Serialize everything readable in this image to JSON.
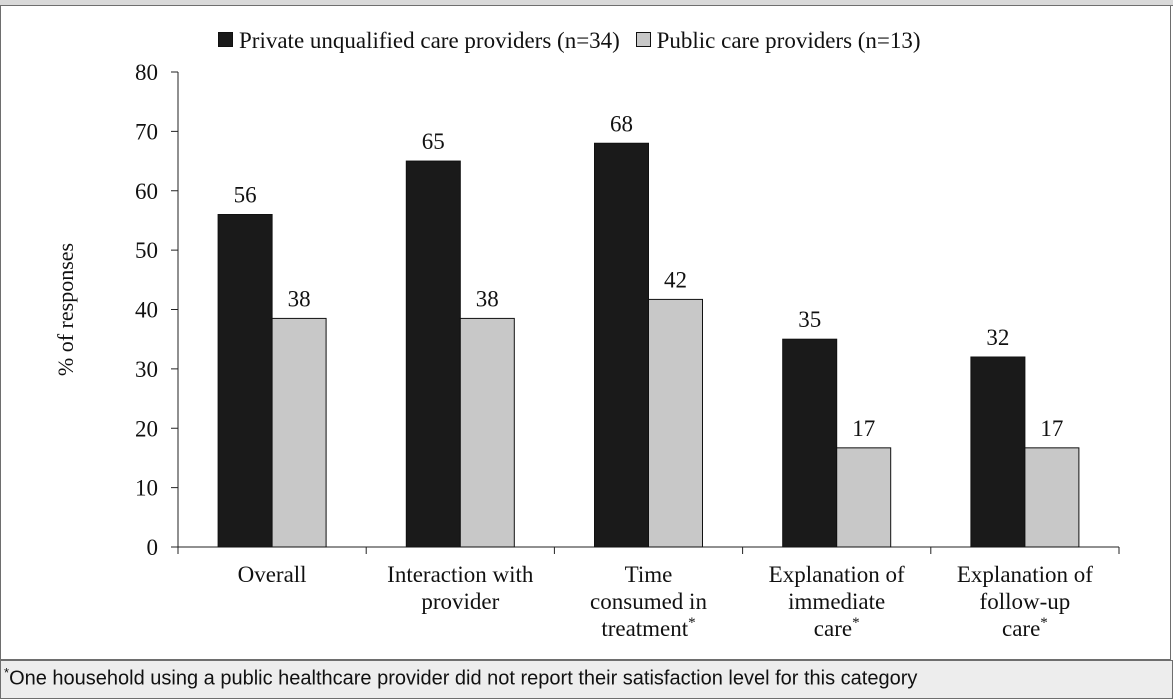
{
  "chart_data": {
    "type": "bar",
    "categories": [
      [
        "Overall"
      ],
      [
        "Interaction with",
        "provider"
      ],
      [
        "Time",
        "consumed in",
        "treatment*"
      ],
      [
        "Explanation of",
        "immediate",
        "care*"
      ],
      [
        "Explanation of",
        "follow-up",
        "care*"
      ]
    ],
    "series": [
      {
        "name": "Private unqualified care providers (n=34)",
        "values": [
          56,
          65,
          68,
          35,
          32
        ],
        "labels": [
          "56",
          "65",
          "68",
          "35",
          "32"
        ],
        "color": "#1a1a1a"
      },
      {
        "name": "Public care providers (n=13)",
        "values": [
          38.5,
          38.5,
          41.7,
          16.7,
          16.7
        ],
        "labels": [
          "38",
          "38",
          "42",
          "17",
          "17"
        ],
        "color": "#c8c8c8"
      }
    ],
    "ylabel": "% of responses",
    "ylim": [
      0,
      80
    ],
    "yticks": [
      0,
      10,
      20,
      30,
      40,
      50,
      60,
      70,
      80
    ],
    "legend_position": "top",
    "grid": false
  },
  "footnote": {
    "marker": "*",
    "text": "One household using a public healthcare provider did not report their satisfaction level for this category"
  }
}
